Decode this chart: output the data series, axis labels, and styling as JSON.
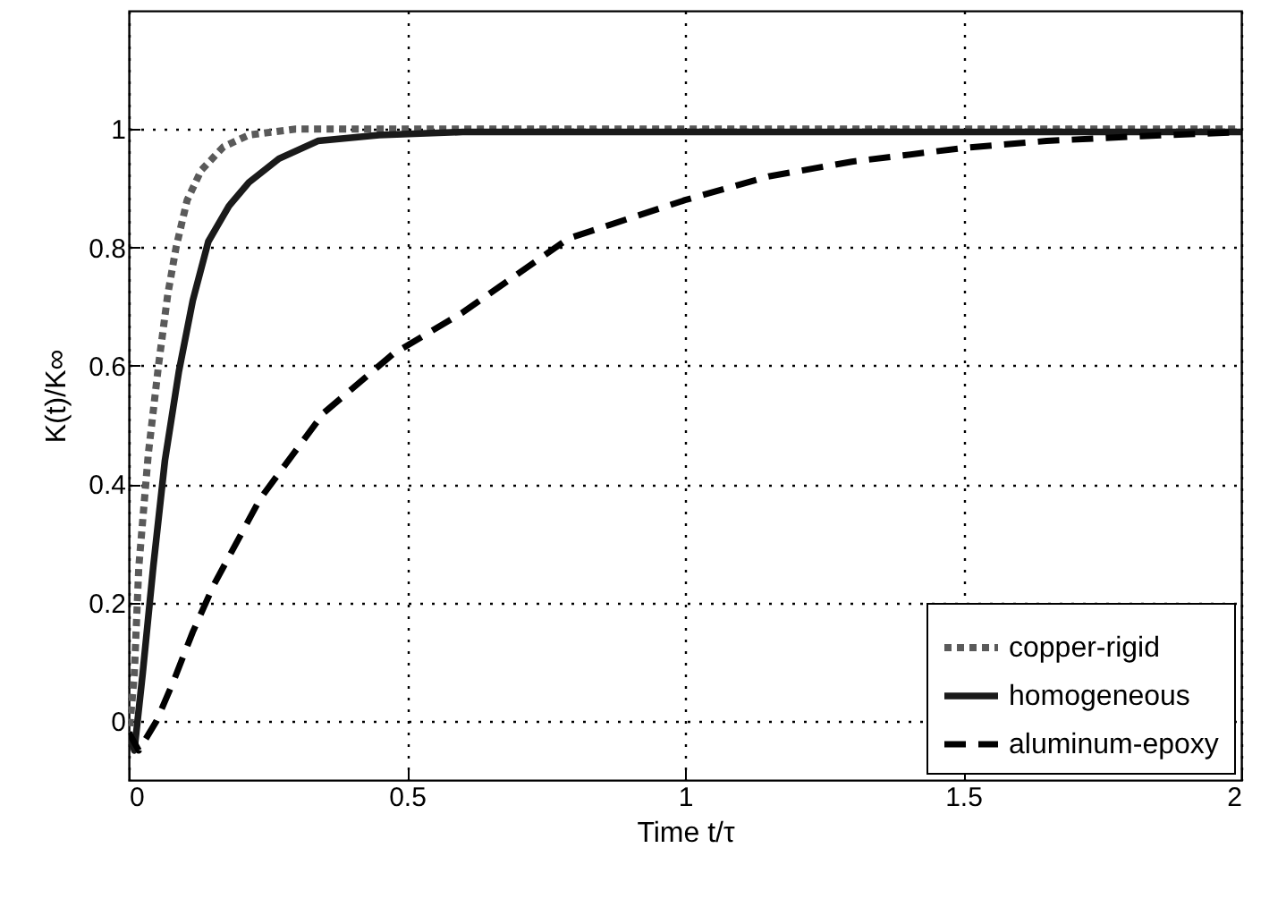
{
  "chart_data": {
    "type": "line",
    "xlabel": "Time t/τ",
    "ylabel": "K(t)/K∞",
    "xlim": [
      0,
      2
    ],
    "ylim": [
      -0.1,
      1.2
    ],
    "xticks": [
      0,
      0.5,
      1,
      1.5,
      2
    ],
    "yticks": [
      0,
      0.2,
      0.4,
      0.6,
      0.8,
      1
    ],
    "grid": true,
    "legend": "bottom right",
    "series": [
      {
        "name": "copper-rigid",
        "color": "#5a5a5a",
        "line_style": "dotted",
        "x": [
          0,
          0.01,
          0.018,
          0.035,
          0.054,
          0.07,
          0.085,
          0.105,
          0.13,
          0.17,
          0.216,
          0.3,
          0.4,
          0.6,
          1,
          1.5,
          2
        ],
        "values": [
          -0.03,
          0.08,
          0.26,
          0.45,
          0.605,
          0.72,
          0.8,
          0.88,
          0.93,
          0.97,
          0.99,
          1,
          1,
          1,
          1,
          1,
          1
        ]
      },
      {
        "name": "homogeneous",
        "color": "#1a1a1a",
        "line_style": "solid",
        "x": [
          0,
          0.01,
          0.025,
          0.044,
          0.065,
          0.09,
          0.115,
          0.143,
          0.18,
          0.216,
          0.27,
          0.34,
          0.45,
          0.6,
          1,
          1.5,
          2
        ],
        "values": [
          -0.02,
          -0.05,
          0.08,
          0.26,
          0.44,
          0.59,
          0.71,
          0.81,
          0.87,
          0.91,
          0.95,
          0.98,
          0.99,
          0.995,
          0.995,
          0.995,
          0.995
        ]
      },
      {
        "name": "aluminum-epoxy",
        "color": "#000000",
        "line_style": "dashed",
        "x": [
          0,
          0.018,
          0.05,
          0.08,
          0.115,
          0.153,
          0.236,
          0.35,
          0.475,
          0.6,
          0.79,
          1,
          1.15,
          1.3,
          1.5,
          1.65,
          1.82,
          2
        ],
        "values": [
          -0.02,
          -0.05,
          0.0,
          0.066,
          0.15,
          0.23,
          0.375,
          0.52,
          0.62,
          0.69,
          0.815,
          0.88,
          0.92,
          0.945,
          0.968,
          0.98,
          0.988,
          0.995
        ]
      }
    ]
  }
}
